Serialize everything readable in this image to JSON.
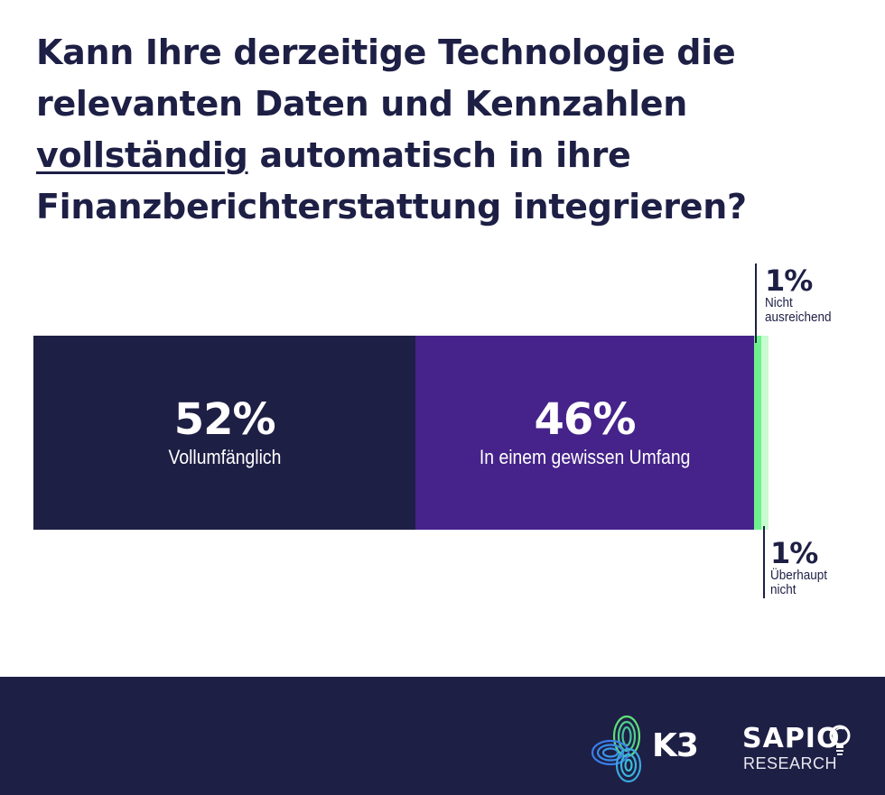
{
  "title": {
    "before": "Kann Ihre derzeitige Technologie die relevanten Daten und Kennzahlen ",
    "underlined": "vollständig",
    "after": " automatisch in ihre Finanzberichterstattung integrieren?"
  },
  "colors": {
    "text": "#1e1f45",
    "footer": "#1e1f45",
    "vollumfaenglich": "#1e1f45",
    "gewissen_umfang": "#45238a",
    "nicht_ausreichend": "#6ff28d",
    "ueberhaupt_nicht": "#c8fbd0"
  },
  "chart_data": {
    "type": "bar",
    "orientation": "horizontal-stacked",
    "title": "Kann Ihre derzeitige Technologie die relevanten Daten und Kennzahlen vollständig automatisch in ihre Finanzberichterstattung integrieren?",
    "xlim": [
      0,
      100
    ],
    "unit": "%",
    "grid": false,
    "series": [
      {
        "name": "Vollumfänglich",
        "value": 52,
        "label": "52%"
      },
      {
        "name": "In einem gewissen Umfang",
        "value": 46,
        "label": "46%"
      },
      {
        "name": "Nicht ausreichend",
        "value": 1,
        "label": "1%"
      },
      {
        "name": "Überhaupt nicht",
        "value": 1,
        "label": "1%"
      }
    ]
  },
  "callouts": {
    "top": {
      "pct": "1%",
      "line1": "Nicht",
      "line2": "ausreichend"
    },
    "bottom": {
      "pct": "1%",
      "line1": "Überhaupt",
      "line2": "nicht"
    }
  },
  "footer": {
    "logos": [
      {
        "name": "K3",
        "text": "K3",
        "icon": "k3-knot-icon"
      },
      {
        "name": "Sapio Research",
        "text": "SAPIO",
        "subtext": "RESEARCH",
        "icon": "lightbulb-icon"
      }
    ]
  }
}
